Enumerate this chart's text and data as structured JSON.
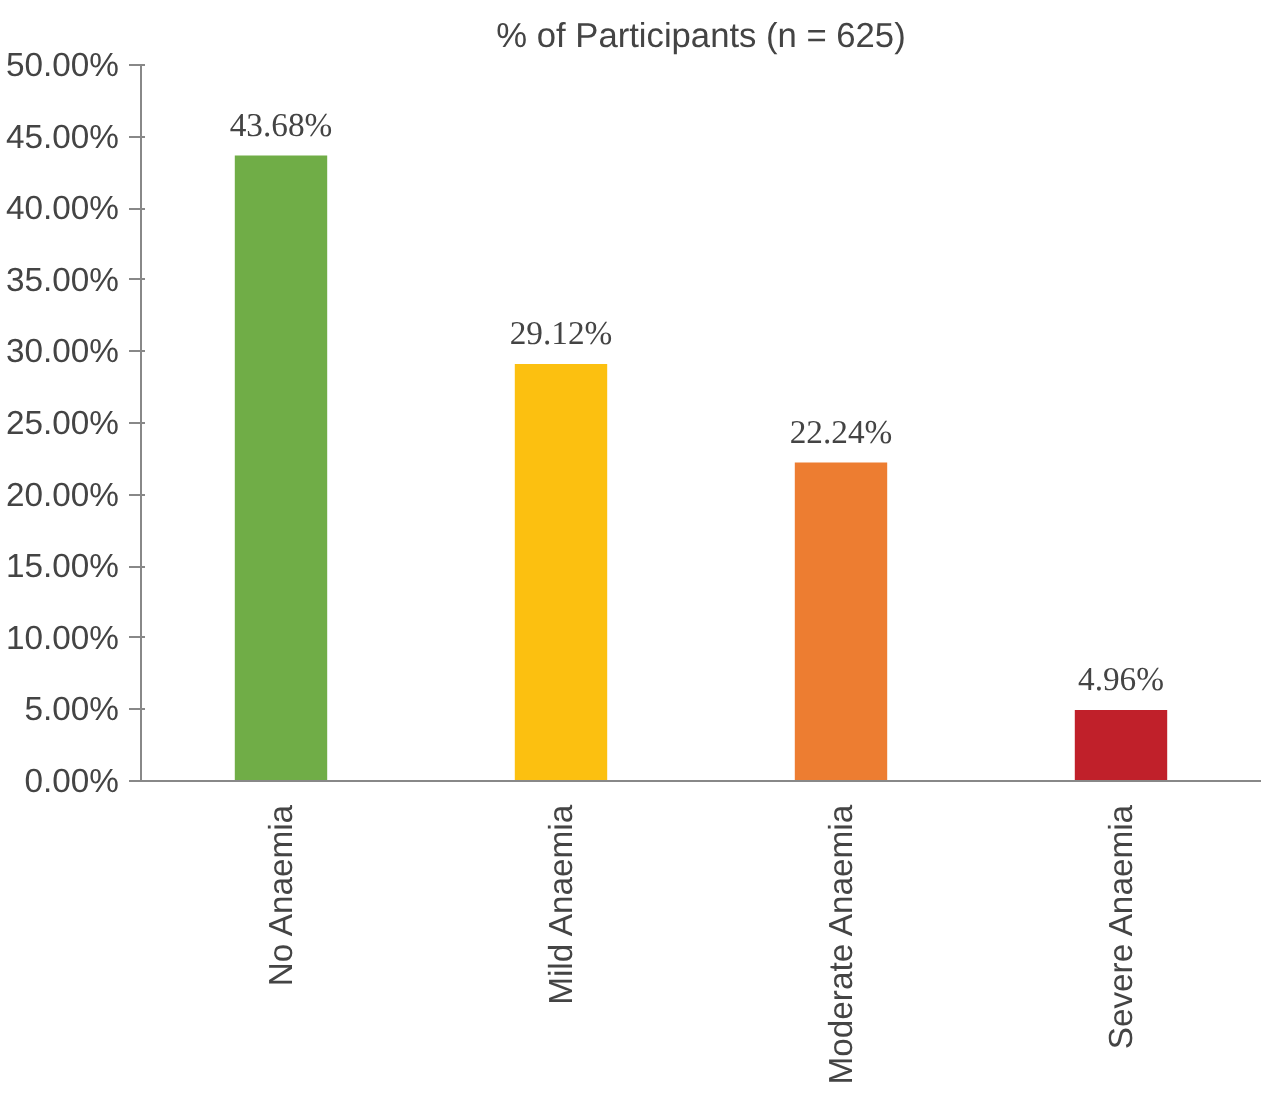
{
  "chart_data": {
    "type": "bar",
    "title": "% of Participants (n = 625)",
    "categories": [
      "No Anaemia",
      "Mild Anaemia",
      "Moderate Anaemia",
      "Severe Anaemia"
    ],
    "values": [
      43.68,
      29.12,
      22.24,
      4.96
    ],
    "colors": [
      "#70ad47",
      "#fcc010",
      "#ed7d31",
      "#c0202a"
    ],
    "value_labels": [
      "43.68%",
      "29.12%",
      "22.24%",
      "4.96%"
    ],
    "ylim": [
      0,
      50
    ],
    "yticks": [
      {
        "value": 0,
        "label": "0.00%"
      },
      {
        "value": 5,
        "label": "5.00%"
      },
      {
        "value": 10,
        "label": "10.00%"
      },
      {
        "value": 15,
        "label": "15.00%"
      },
      {
        "value": 20,
        "label": "20.00%"
      },
      {
        "value": 25,
        "label": "25.00%"
      },
      {
        "value": 30,
        "label": "30.00%"
      },
      {
        "value": 35,
        "label": "35.00%"
      },
      {
        "value": 40,
        "label": "40.00%"
      },
      {
        "value": 45,
        "label": "45.00%"
      },
      {
        "value": 50,
        "label": "50.00%"
      }
    ],
    "grid": false
  }
}
